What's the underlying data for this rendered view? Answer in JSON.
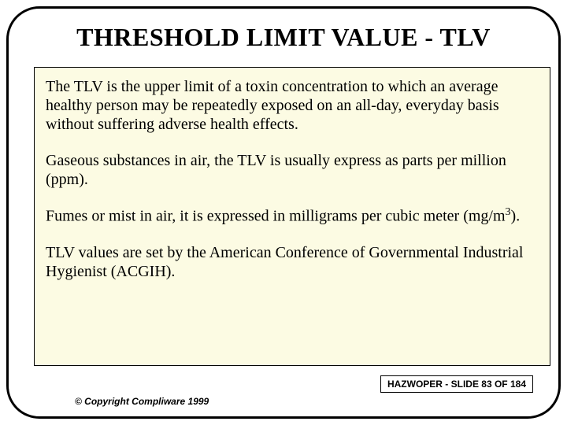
{
  "slide": {
    "title": "THRESHOLD LIMIT VALUE - TLV",
    "content": {
      "para1": "The TLV is the upper limit of a toxin concentration to which an average healthy person may be repeatedly exposed on an all-day, everyday basis without suffering adverse health effects.",
      "para2": "Gaseous substances in air, the TLV is usually express as parts per million (ppm).",
      "para3_pre": "Fumes or mist in air, it is expressed in milligrams per cubic meter (mg/m",
      "para3_post": ").",
      "para4": "TLV values are set by the American Conference of Governmental Industrial Hygienist (ACGIH)."
    },
    "copyright": "© Copyright Compliware 1999",
    "counter": "HAZWOPER - SLIDE 83 OF 184"
  },
  "style": {
    "frame_border_color": "#000000",
    "frame_border_width": 3,
    "frame_border_radius": 42,
    "background_color": "#ffffff",
    "content_background": "#fcfbe3",
    "content_border_color": "#000000",
    "title_fontsize": 32,
    "body_fontsize": 20,
    "footer_fontsize": 12,
    "font_family_body": "Times New Roman",
    "font_family_footer": "Arial"
  }
}
